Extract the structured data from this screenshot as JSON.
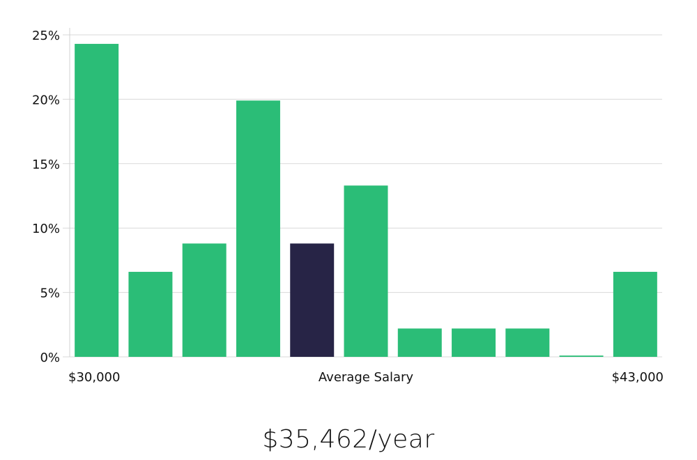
{
  "chart_data": {
    "type": "bar",
    "title": "",
    "xlabel": "Average Salary",
    "ylabel": "",
    "x_range_labels": [
      "$30,000",
      "$43,000"
    ],
    "y_ticks": [
      "0%",
      "5%",
      "10%",
      "15%",
      "20%",
      "25%"
    ],
    "ylim": [
      0,
      25
    ],
    "grid": true,
    "values": [
      24.3,
      6.6,
      8.8,
      19.9,
      8.8,
      13.3,
      2.2,
      2.2,
      2.2,
      0.1,
      6.6
    ],
    "highlight_index": 4,
    "colors": {
      "bar": "#2bbd77",
      "highlight": "#272446"
    }
  },
  "caption": "$35,462/year"
}
